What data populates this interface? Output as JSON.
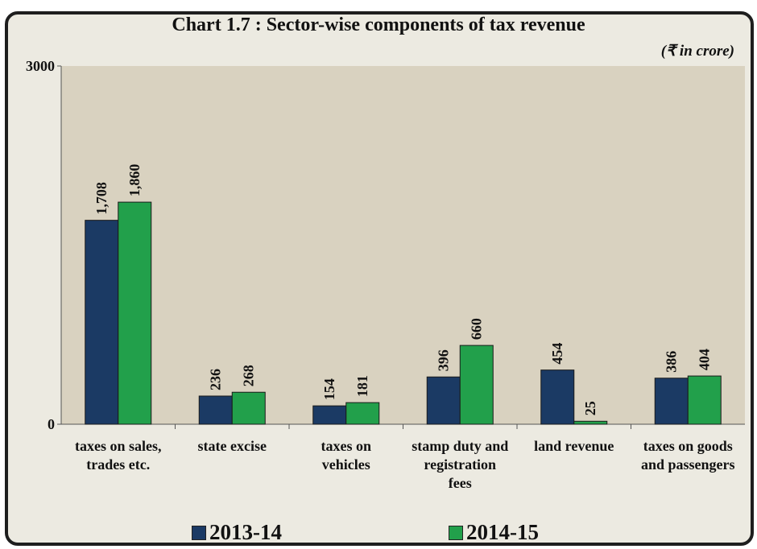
{
  "chart_data": {
    "type": "bar",
    "title": "Chart 1.7 : Sector-wise components of tax revenue",
    "unit_note": "(₹ in crore)",
    "categories": [
      [
        "taxes on sales,",
        "trades etc."
      ],
      [
        "state excise"
      ],
      [
        "taxes on",
        "vehicles"
      ],
      [
        "stamp duty and",
        "registration",
        "fees"
      ],
      [
        "land revenue"
      ],
      [
        "taxes on goods",
        "and passengers"
      ]
    ],
    "series": [
      {
        "name": "2013-14",
        "color": "#1b3a64",
        "values": [
          1708,
          236,
          154,
          396,
          454,
          386
        ],
        "labels": [
          "1,708",
          "236",
          "154",
          "396",
          "454",
          "386"
        ]
      },
      {
        "name": "2014-15",
        "color": "#22a04b",
        "values": [
          1860,
          268,
          181,
          660,
          25,
          404
        ],
        "labels": [
          "1,860",
          "268",
          "181",
          "660",
          "25",
          "404"
        ]
      }
    ],
    "ylim": [
      0,
      3000
    ],
    "yticks": [
      "0",
      "3000"
    ],
    "grid": false,
    "legend_position": "bottom"
  }
}
